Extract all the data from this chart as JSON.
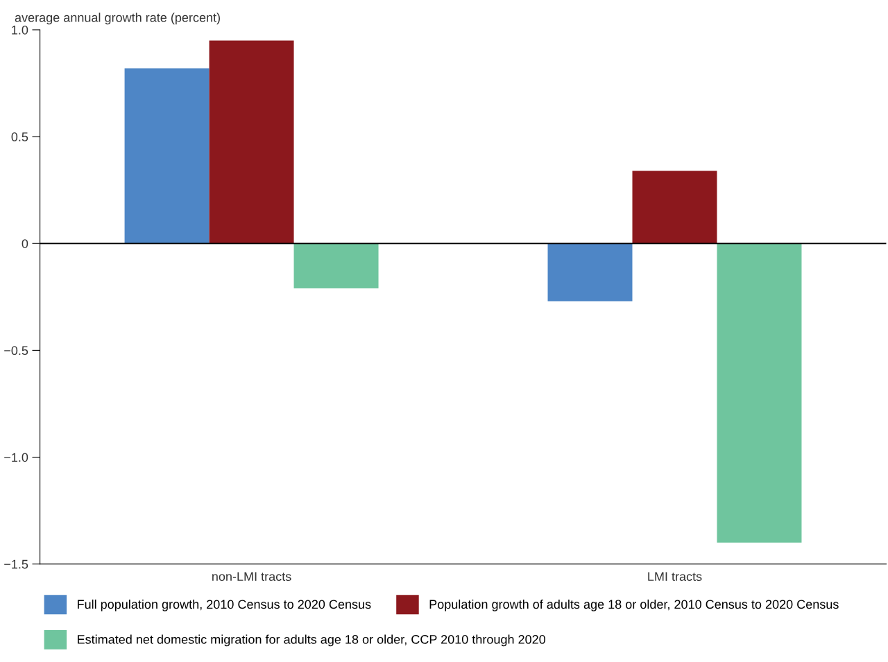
{
  "chart_data": {
    "type": "bar",
    "ylabel": "average annual growth rate (percent)",
    "categories": [
      "non-LMI tracts",
      "LMI tracts"
    ],
    "series": [
      {
        "name": "Full population growth, 2010 Census to 2020 Census",
        "color": "#4e86c6",
        "values": [
          0.82,
          -0.27
        ]
      },
      {
        "name": "Population growth of adults age 18 or older, 2010 Census to 2020 Census",
        "color": "#8c181d",
        "values": [
          0.95,
          0.34
        ]
      },
      {
        "name": "Estimated net domestic migration for adults age 18 or older, CCP 2010 through 2020",
        "color": "#6fc59e",
        "values": [
          -0.21,
          -1.4
        ]
      }
    ],
    "ylim": [
      -1.5,
      1.0
    ],
    "yticks": [
      {
        "value": 1.0,
        "label": "1.0"
      },
      {
        "value": 0.5,
        "label": "0.5"
      },
      0,
      {
        "value": -0.5,
        "label": "−0.5"
      },
      {
        "value": -1.0,
        "label": "−1.0"
      },
      {
        "value": -1.5,
        "label": "−1.5"
      }
    ],
    "ref_lines": [
      {
        "axis": "y",
        "value": 0,
        "color": "#000000"
      }
    ],
    "grid": false,
    "legend": "bottom"
  }
}
